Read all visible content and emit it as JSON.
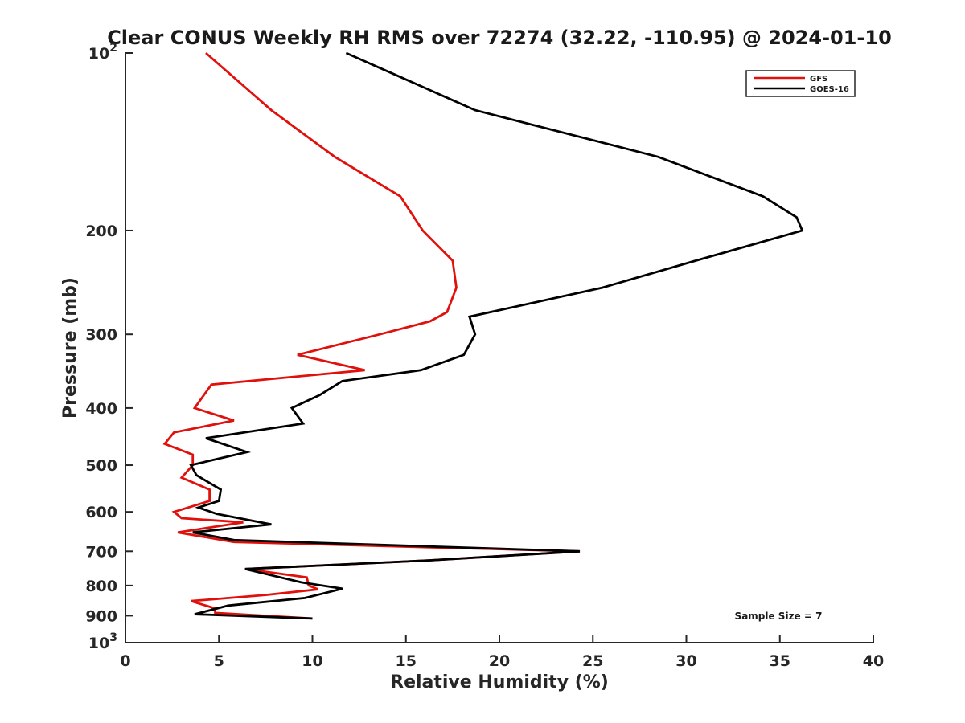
{
  "chart_data": {
    "type": "line",
    "title": "Clear CONUS Weekly RH RMS over 72274 (32.22, -110.95) @ 2024-01-10",
    "xlabel": "Relative Humidity (%)",
    "ylabel": "Pressure (mb)",
    "xlim": [
      0,
      40
    ],
    "ylim": [
      100,
      1000
    ],
    "y_scale": "log",
    "y_reversed": true,
    "x_ticks": [
      0,
      5,
      10,
      15,
      20,
      25,
      30,
      35,
      40
    ],
    "x_tick_labels": [
      "0",
      "5",
      "10",
      "15",
      "20",
      "25",
      "30",
      "35",
      "40"
    ],
    "y_ticks": [
      100,
      200,
      300,
      400,
      500,
      600,
      700,
      800,
      900,
      1000
    ],
    "y_tick_labels": [
      {
        "base": "10",
        "exp": "2"
      },
      {
        "base": "200"
      },
      {
        "base": "300"
      },
      {
        "base": "400"
      },
      {
        "base": "500"
      },
      {
        "base": "600"
      },
      {
        "base": "700"
      },
      {
        "base": "800"
      },
      {
        "base": "900"
      },
      {
        "base": "10",
        "exp": "3"
      }
    ],
    "grid": false,
    "legend_position": "top-right",
    "series": [
      {
        "name": "GFS",
        "color": "#e0100c",
        "points": [
          [
            4.3,
            100
          ],
          [
            7.8,
            125
          ],
          [
            11.2,
            150
          ],
          [
            14.7,
            175
          ],
          [
            15.9,
            200
          ],
          [
            17.5,
            225
          ],
          [
            17.7,
            250
          ],
          [
            17.2,
            275
          ],
          [
            16.3,
            285
          ],
          [
            13.6,
            300
          ],
          [
            9.2,
            325
          ],
          [
            12.8,
            345
          ],
          [
            4.6,
            365
          ],
          [
            4.2,
            380
          ],
          [
            3.7,
            400
          ],
          [
            5.8,
            420
          ],
          [
            2.6,
            440
          ],
          [
            2.1,
            460
          ],
          [
            3.6,
            480
          ],
          [
            3.6,
            500
          ],
          [
            3.0,
            525
          ],
          [
            4.5,
            550
          ],
          [
            4.5,
            575
          ],
          [
            2.6,
            600
          ],
          [
            3.0,
            615
          ],
          [
            6.3,
            625
          ],
          [
            2.8,
            650
          ],
          [
            5.8,
            675
          ],
          [
            24.3,
            700
          ],
          [
            16.3,
            725
          ],
          [
            6.4,
            750
          ],
          [
            9.7,
            775
          ],
          [
            9.8,
            800
          ],
          [
            10.3,
            812
          ],
          [
            7.5,
            830
          ],
          [
            3.5,
            850
          ],
          [
            4.8,
            875
          ],
          [
            4.8,
            890
          ],
          [
            10.0,
            910
          ]
        ]
      },
      {
        "name": "GOES-16",
        "color": "#000000",
        "points": [
          [
            11.8,
            100
          ],
          [
            18.7,
            125
          ],
          [
            28.5,
            150
          ],
          [
            34.1,
            175
          ],
          [
            35.9,
            190
          ],
          [
            36.2,
            200
          ],
          [
            30.5,
            225
          ],
          [
            25.5,
            250
          ],
          [
            18.4,
            280
          ],
          [
            18.7,
            300
          ],
          [
            18.1,
            325
          ],
          [
            15.8,
            345
          ],
          [
            11.6,
            360
          ],
          [
            10.4,
            380
          ],
          [
            8.9,
            400
          ],
          [
            9.5,
            425
          ],
          [
            4.3,
            450
          ],
          [
            6.5,
            475
          ],
          [
            3.5,
            500
          ],
          [
            3.8,
            520
          ],
          [
            5.1,
            550
          ],
          [
            5.0,
            575
          ],
          [
            3.9,
            590
          ],
          [
            4.9,
            605
          ],
          [
            7.8,
            630
          ],
          [
            3.6,
            650
          ],
          [
            5.8,
            670
          ],
          [
            24.3,
            700
          ],
          [
            16.3,
            725
          ],
          [
            6.4,
            750
          ],
          [
            9.4,
            790
          ],
          [
            11.6,
            810
          ],
          [
            9.6,
            840
          ],
          [
            5.5,
            865
          ],
          [
            3.7,
            895
          ],
          [
            10.0,
            910
          ]
        ]
      }
    ],
    "annotations": [
      "Sample Size = 7"
    ]
  }
}
